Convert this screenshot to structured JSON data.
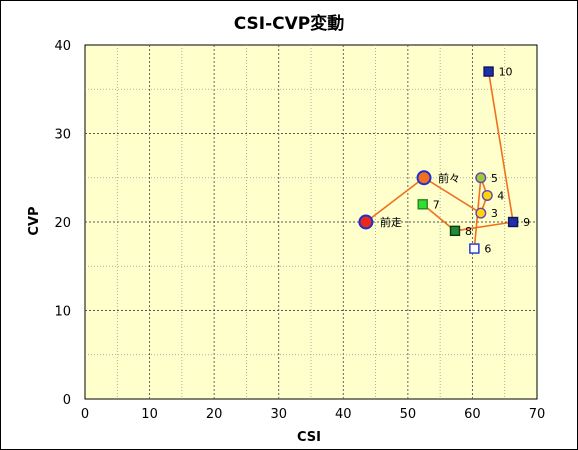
{
  "chart_data": {
    "type": "scatter",
    "title": "CSI-CVP変動",
    "xlabel": "CSI",
    "ylabel": "CVP",
    "xlim": [
      0,
      70
    ],
    "ylim": [
      0,
      40
    ],
    "x_ticks": [
      "0",
      "10",
      "20",
      "30",
      "40",
      "50",
      "60",
      "70"
    ],
    "y_ticks": [
      "0",
      "10",
      "20",
      "30",
      "40"
    ],
    "grid": true,
    "background": "#ffffcc",
    "line_color": "#f07020",
    "points": [
      {
        "label": "前走",
        "x": 43.5,
        "y": 20,
        "marker": "circle-large",
        "fill": "#e8291c",
        "stroke": "#1e2fd0"
      },
      {
        "label": "前々",
        "x": 52.5,
        "y": 25,
        "marker": "circle-large",
        "fill": "#f07020",
        "stroke": "#1e2fd0"
      },
      {
        "label": "3",
        "x": 61.3,
        "y": 21,
        "marker": "circle",
        "fill": "#ffd700",
        "stroke": "#6a3fbf"
      },
      {
        "label": "4",
        "x": 62.3,
        "y": 23,
        "marker": "circle",
        "fill": "#ffd700",
        "stroke": "#6a3fbf"
      },
      {
        "label": "5",
        "x": 61.3,
        "y": 25,
        "marker": "circle",
        "fill": "#9acd32",
        "stroke": "#6a3fbf"
      },
      {
        "label": "6",
        "x": 60.3,
        "y": 17,
        "marker": "square",
        "fill": "#ffffff",
        "stroke": "#1e2fd0"
      },
      {
        "label": "7",
        "x": 52.3,
        "y": 22,
        "marker": "square",
        "fill": "#33dd33",
        "stroke": "#1e8a1e"
      },
      {
        "label": "8",
        "x": 57.3,
        "y": 19,
        "marker": "square",
        "fill": "#1e8a3a",
        "stroke": "#0b3d0b"
      },
      {
        "label": "9",
        "x": 66.3,
        "y": 20,
        "marker": "square",
        "fill": "#1e2fa8",
        "stroke": "#0b155a"
      },
      {
        "label": "10",
        "x": 62.5,
        "y": 37,
        "marker": "square",
        "fill": "#1e2fa8",
        "stroke": "#0b155a"
      }
    ],
    "path_main": [
      "前走",
      "前々",
      "3",
      "4",
      "5",
      "6"
    ],
    "path_secondary": [
      "7",
      "8",
      "9",
      "10"
    ]
  }
}
